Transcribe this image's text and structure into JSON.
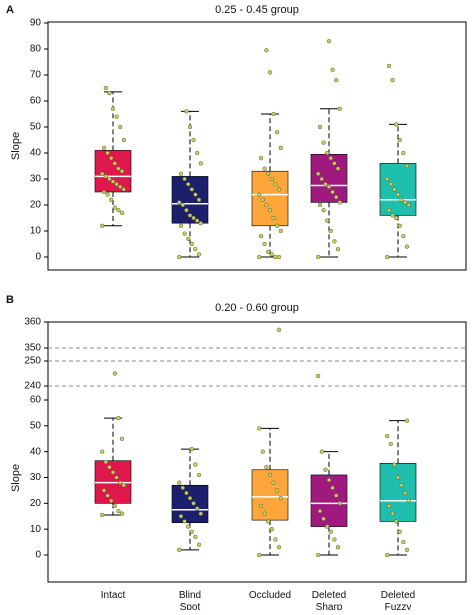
{
  "chart_data": [
    {
      "type": "box",
      "panel_label": "A",
      "title": "0.25 - 0.45 group",
      "ylabel": "Slope",
      "ylim": [
        0,
        90
      ],
      "yticks": [
        0,
        10,
        20,
        30,
        40,
        50,
        60,
        70,
        80,
        90
      ],
      "boxes": [
        {
          "color": "#e0174a",
          "whisker_low": 12,
          "q1": 25,
          "median": 31,
          "q3": 41,
          "whisker_high": 63.5,
          "points": [
            12,
            17,
            18,
            19,
            22,
            24,
            25,
            26,
            27,
            28,
            29,
            30,
            31,
            32,
            33,
            34,
            36,
            38,
            40,
            42,
            45,
            50,
            54,
            57,
            63,
            65
          ]
        },
        {
          "color": "#1c1f6b",
          "whisker_low": 0,
          "q1": 13,
          "median": 20.5,
          "q3": 31,
          "whisker_high": 56,
          "points": [
            0,
            1,
            3,
            5,
            7,
            9,
            12,
            13,
            14,
            15,
            16,
            18,
            20,
            21,
            22,
            24,
            26,
            28,
            30,
            32,
            36,
            40,
            45,
            50,
            56
          ]
        },
        {
          "color": "#ffa63a",
          "whisker_low": 0,
          "q1": 12,
          "median": 24,
          "q3": 33,
          "whisker_high": 55,
          "points": [
            0,
            0,
            0,
            1,
            2,
            5,
            8,
            10,
            12,
            15,
            18,
            20,
            22,
            24,
            26,
            28,
            30,
            32,
            34,
            38,
            42,
            48,
            55,
            71,
            79.5
          ]
        },
        {
          "color": "#a0197e",
          "whisker_low": 0,
          "q1": 21,
          "median": 27.5,
          "q3": 39.5,
          "whisker_high": 57,
          "points": [
            0,
            3,
            6,
            10,
            14,
            18,
            20,
            21,
            23,
            25,
            27,
            28,
            30,
            32,
            34,
            36,
            38,
            40,
            44,
            50,
            57,
            68,
            72,
            83
          ]
        },
        {
          "color": "#1fbfad",
          "whisker_low": 0,
          "q1": 16,
          "median": 22,
          "q3": 36,
          "whisker_high": 51,
          "points": [
            0,
            4,
            8,
            12,
            15,
            16,
            18,
            20,
            21,
            22,
            24,
            26,
            28,
            30,
            35,
            40,
            45,
            51,
            68,
            73.5
          ]
        }
      ]
    },
    {
      "type": "box",
      "panel_label": "B",
      "title": "0.20 - 0.60 group",
      "ylabel": "Slope",
      "categories": [
        "Intact",
        "Blind Spot",
        "Occluded",
        "Deleted Sharp",
        "Deleted Fuzzy"
      ],
      "ylim": [
        0,
        60
      ],
      "yticks": [
        0,
        10,
        20,
        30,
        40,
        50,
        60
      ],
      "upper_segments": [
        {
          "ylim": [
            240,
            250
          ],
          "yticks": [
            240,
            250
          ]
        },
        {
          "ylim": [
            350,
            360
          ],
          "yticks": [
            350,
            360
          ]
        }
      ],
      "boxes": [
        {
          "color": "#e0174a",
          "whisker_low": 15.5,
          "q1": 20,
          "median": 28,
          "q3": 36.5,
          "whisker_high": 53,
          "points": [
            15.5,
            16,
            17,
            19,
            21,
            23,
            25,
            27,
            28,
            30,
            32,
            34,
            36,
            40,
            45,
            53,
            245
          ]
        },
        {
          "color": "#1c1f6b",
          "whisker_low": 2,
          "q1": 12.5,
          "median": 17.5,
          "q3": 27,
          "whisker_high": 41,
          "points": [
            2,
            4,
            7,
            9,
            11,
            13,
            15,
            16,
            18,
            20,
            22,
            24,
            26,
            28,
            31,
            35,
            41
          ]
        },
        {
          "color": "#ffa63a",
          "whisker_low": 0,
          "q1": 13.5,
          "median": 22.5,
          "q3": 33,
          "whisker_high": 49,
          "points": [
            0,
            3,
            6,
            10,
            13,
            16,
            19,
            22,
            25,
            28,
            31,
            34,
            40,
            49,
            357
          ]
        },
        {
          "color": "#a0197e",
          "whisker_low": 0,
          "q1": 11,
          "median": 20,
          "q3": 31,
          "whisker_high": 40,
          "points": [
            0,
            3,
            6,
            9,
            11,
            14,
            17,
            20,
            23,
            26,
            29,
            33,
            40,
            244
          ]
        },
        {
          "color": "#1fbfad",
          "whisker_low": 0,
          "q1": 13,
          "median": 21,
          "q3": 35.5,
          "whisker_high": 52,
          "points": [
            0,
            2,
            5,
            9,
            13,
            16,
            19,
            21,
            24,
            27,
            30,
            35,
            43,
            46,
            52
          ]
        }
      ]
    }
  ]
}
